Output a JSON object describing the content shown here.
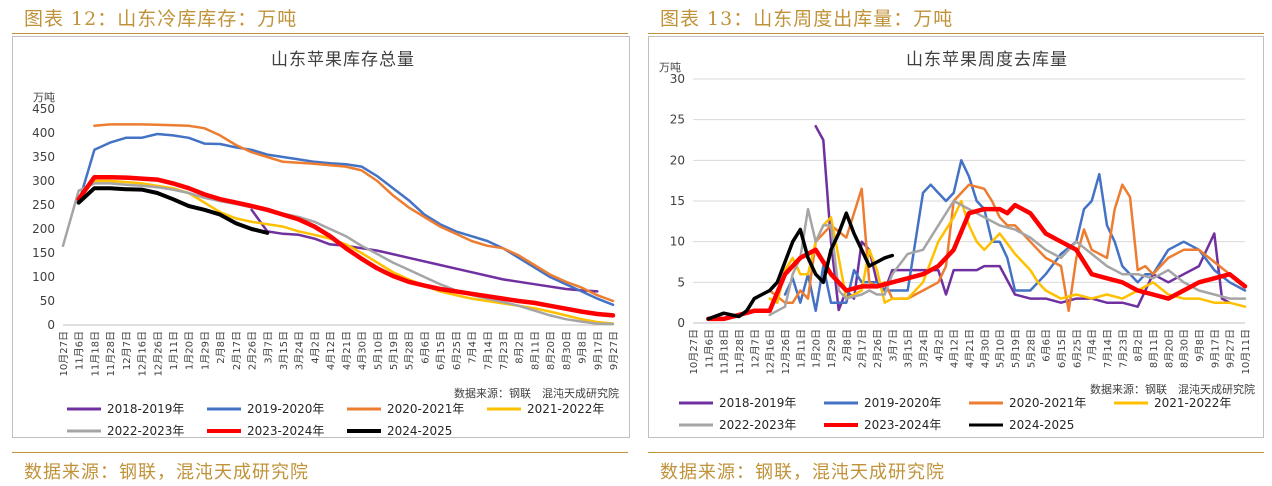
{
  "figures": [
    {
      "fig_title": "图表 12：山东冷库库存：万吨",
      "source_footer": "数据来源：钢联，混沌天成研究院"
    },
    {
      "fig_title": "图表 13：山东周度出库量：万吨",
      "source_footer": "数据来源：钢联，混沌天成研究院"
    }
  ],
  "chart_data": [
    {
      "type": "line",
      "title": "山东苹果库存总量",
      "unit": "万吨",
      "source_note": "数据来源：钢联　混沌天成研究院",
      "ylim": [
        0,
        450
      ],
      "yticks": [
        0,
        50,
        100,
        150,
        200,
        250,
        300,
        350,
        400,
        450
      ],
      "x_labels": [
        "10月27日",
        "11月6日",
        "11月18日",
        "11月28日",
        "12月7日",
        "12月16日",
        "12月26日",
        "1月11日",
        "1月20日",
        "1月29日",
        "2月8日",
        "2月17日",
        "2月26日",
        "3月7日",
        "3月15日",
        "3月24日",
        "4月2日",
        "4月12日",
        "4月21日",
        "4月30日",
        "5月10日",
        "5月19日",
        "5月28日",
        "6月6日",
        "6月15日",
        "6月25日",
        "7月4日",
        "7月14日",
        "7月23日",
        "8月2日",
        "8月11日",
        "8月20日",
        "8月30日",
        "9月8日",
        "9月17日",
        "9月27日"
      ],
      "grid": false,
      "legend_position": "bottom",
      "series": [
        {
          "name": "2018-2019年",
          "color": "#7030a0",
          "width": 2.5,
          "x": [
            12,
            13,
            14,
            15,
            16,
            17,
            18,
            20,
            22,
            24,
            26,
            28,
            30,
            32,
            33,
            34
          ],
          "y": [
            240,
            195,
            190,
            188,
            180,
            168,
            165,
            155,
            140,
            125,
            110,
            95,
            85,
            75,
            72,
            70
          ]
        },
        {
          "name": "2019-2020年",
          "color": "#4472c4",
          "width": 2.5,
          "x": [
            1,
            2,
            3,
            4,
            5,
            6,
            7,
            8,
            9,
            10,
            11,
            12,
            13,
            14,
            15,
            16,
            17,
            18,
            19,
            20,
            21,
            22,
            23,
            24,
            25,
            26,
            27,
            28,
            29,
            30,
            31,
            32,
            33,
            34,
            35
          ],
          "y": [
            255,
            365,
            380,
            390,
            390,
            398,
            395,
            390,
            378,
            377,
            370,
            365,
            355,
            350,
            345,
            340,
            337,
            335,
            330,
            310,
            285,
            260,
            230,
            210,
            195,
            185,
            175,
            160,
            140,
            120,
            100,
            85,
            70,
            55,
            42
          ]
        },
        {
          "name": "2020-2021年",
          "color": "#ed7d31",
          "width": 2.5,
          "x": [
            2,
            3,
            4,
            5,
            6,
            7,
            8,
            9,
            10,
            11,
            12,
            13,
            14,
            15,
            16,
            17,
            18,
            19,
            20,
            21,
            22,
            23,
            24,
            25,
            26,
            27,
            28,
            29,
            30,
            31,
            32,
            33,
            34,
            35
          ],
          "y": [
            415,
            418,
            418,
            418,
            417,
            416,
            415,
            410,
            395,
            375,
            360,
            350,
            340,
            338,
            336,
            333,
            330,
            322,
            300,
            270,
            245,
            225,
            205,
            190,
            175,
            165,
            160,
            145,
            125,
            105,
            90,
            78,
            62,
            50
          ]
        },
        {
          "name": "2021-2022年",
          "color": "#ffc000",
          "width": 2.5,
          "x": [
            2,
            3,
            4,
            5,
            6,
            7,
            8,
            9,
            10,
            11,
            12,
            13,
            14,
            15,
            16,
            17,
            18,
            19,
            20,
            21,
            22,
            23,
            24,
            25,
            26,
            27,
            28,
            29,
            30,
            31,
            32,
            33,
            34,
            35
          ],
          "y": [
            300,
            300,
            298,
            295,
            290,
            285,
            275,
            255,
            235,
            222,
            215,
            210,
            205,
            195,
            188,
            180,
            168,
            150,
            130,
            110,
            95,
            82,
            70,
            62,
            55,
            50,
            45,
            40,
            35,
            28,
            20,
            12,
            6,
            3
          ]
        },
        {
          "name": "2022-2023年",
          "color": "#a5a5a5",
          "width": 2.5,
          "x": [
            0,
            1,
            2,
            3,
            4,
            5,
            6,
            7,
            8,
            9,
            10,
            11,
            12,
            13,
            14,
            15,
            16,
            17,
            18,
            19,
            20,
            21,
            22,
            23,
            24,
            25,
            26,
            27,
            28,
            29,
            30,
            31,
            32,
            33,
            34,
            35
          ],
          "y": [
            165,
            280,
            295,
            295,
            292,
            290,
            287,
            282,
            275,
            265,
            258,
            252,
            245,
            238,
            232,
            225,
            215,
            200,
            185,
            165,
            148,
            130,
            115,
            100,
            85,
            72,
            62,
            55,
            48,
            40,
            30,
            20,
            12,
            7,
            3,
            2
          ]
        },
        {
          "name": "2023-2024年",
          "color": "#ff0000",
          "width": 4.5,
          "x": [
            1,
            2,
            3,
            4,
            5,
            6,
            7,
            8,
            9,
            10,
            11,
            12,
            13,
            14,
            15,
            16,
            17,
            18,
            19,
            20,
            21,
            22,
            23,
            24,
            25,
            26,
            27,
            28,
            29,
            30,
            31,
            32,
            33,
            34,
            35
          ],
          "y": [
            262,
            308,
            308,
            307,
            305,
            303,
            295,
            285,
            272,
            262,
            255,
            248,
            240,
            230,
            220,
            205,
            185,
            160,
            138,
            118,
            102,
            90,
            82,
            75,
            70,
            65,
            60,
            55,
            50,
            46,
            40,
            34,
            28,
            23,
            20
          ]
        },
        {
          "name": "2024-2025",
          "color": "#000000",
          "width": 4,
          "x": [
            1,
            2,
            3,
            4,
            5,
            6,
            7,
            8,
            9,
            10,
            11,
            12,
            13
          ],
          "y": [
            255,
            285,
            285,
            283,
            282,
            275,
            262,
            248,
            240,
            230,
            212,
            200,
            192
          ]
        }
      ]
    },
    {
      "type": "line",
      "title": "山东苹果周度去库量",
      "unit": "万吨",
      "source_note": "数据来源：钢联　混沌天成研究院",
      "ylim": [
        0,
        30
      ],
      "yticks": [
        0,
        5,
        10,
        15,
        20,
        25,
        30
      ],
      "x_labels": [
        "10月27日",
        "11月6日",
        "11月18日",
        "11月28日",
        "12月7日",
        "12月16日",
        "12月26日",
        "1月11日",
        "1月20日",
        "1月29日",
        "2月8日",
        "2月17日",
        "2月26日",
        "3月7日",
        "3月15日",
        "3月24日",
        "4月2日",
        "4月12日",
        "4月21日",
        "4月30日",
        "5月10日",
        "5月19日",
        "5月28日",
        "6月6日",
        "6月15日",
        "6月25日",
        "7月4日",
        "7月14日",
        "7月23日",
        "8月2日",
        "8月11日",
        "8月20日",
        "8月30日",
        "9月8日",
        "9月17日",
        "9月27日",
        "10月11日"
      ],
      "grid": true,
      "legend_position": "bottom",
      "series": [
        {
          "name": "2018-2019年",
          "color": "#7030a0",
          "width": 2.5,
          "x": [
            8,
            8.5,
            9,
            9.5,
            10,
            10.5,
            11,
            11.5,
            12,
            12.5,
            13,
            14,
            15,
            16,
            16.5,
            17,
            18,
            18.5,
            19,
            20,
            21,
            22,
            23,
            24,
            25,
            26,
            27,
            28,
            29,
            30,
            31,
            32,
            33,
            34,
            34.5,
            35
          ],
          "y": [
            24.2,
            22.5,
            10,
            1.6,
            4,
            3,
            10,
            9,
            5,
            4,
            6.5,
            6.5,
            6.5,
            6.5,
            3.5,
            6.5,
            6.5,
            6.5,
            7,
            7,
            3.5,
            3,
            3,
            2.5,
            3,
            3,
            2.5,
            2.5,
            2,
            6,
            5,
            6,
            7,
            11,
            3,
            2.5
          ]
        },
        {
          "name": "2019-2020年",
          "color": "#4472c4",
          "width": 2.5,
          "x": [
            6,
            6.5,
            7,
            7.5,
            8,
            8.5,
            9,
            10,
            10.5,
            11,
            12,
            12.5,
            13,
            13.5,
            14,
            15,
            15.5,
            16,
            16.5,
            17,
            17.5,
            18,
            18.5,
            19,
            19.5,
            20,
            20.5,
            21,
            22,
            23,
            24,
            25,
            25.5,
            26,
            26.5,
            27,
            27.5,
            28,
            28.5,
            29,
            29.5,
            30,
            31,
            32,
            33,
            34,
            35,
            36
          ],
          "y": [
            3.5,
            5.5,
            2.5,
            6,
            1.5,
            7,
            2.5,
            2.5,
            6.5,
            5,
            5,
            4,
            4,
            4,
            4,
            16,
            17,
            16,
            15,
            16,
            20,
            18,
            15,
            14,
            10,
            10,
            8,
            4,
            4,
            6,
            8.5,
            10,
            14,
            15,
            18.3,
            12,
            10,
            7,
            6,
            5,
            6,
            6,
            9,
            10,
            9,
            6.5,
            5,
            4
          ]
        },
        {
          "name": "2020-2021年",
          "color": "#ed7d31",
          "width": 2.5,
          "x": [
            5,
            6,
            6.5,
            7,
            7.5,
            8,
            9,
            10,
            11,
            11.5,
            12,
            12.5,
            13,
            14,
            15,
            16,
            16.5,
            17,
            17.5,
            18,
            19,
            19.5,
            20,
            20.5,
            21,
            22,
            23,
            24,
            24.5,
            25,
            25.5,
            26,
            27,
            27.5,
            28,
            28.5,
            29,
            29.5,
            30,
            31,
            32,
            33,
            34,
            35
          ],
          "y": [
            4,
            2.5,
            2.5,
            4,
            3,
            10,
            12,
            10.5,
            16.5,
            5,
            4.5,
            5,
            3,
            3,
            4,
            5,
            7,
            15,
            16,
            17,
            16.5,
            15,
            13,
            12,
            12,
            10,
            8,
            7,
            1.5,
            8,
            11.5,
            9,
            8,
            14,
            17,
            15.5,
            6.5,
            7,
            6,
            8,
            9,
            9,
            7.5,
            6
          ]
        },
        {
          "name": "2021-2022年",
          "color": "#ffc000",
          "width": 2.5,
          "x": [
            5,
            5.5,
            6,
            6.5,
            7,
            7.5,
            8,
            8.5,
            9,
            9.5,
            10,
            11,
            11.5,
            12,
            12.5,
            13,
            14,
            15,
            16,
            17,
            17.5,
            18,
            18.5,
            19,
            20,
            21,
            22,
            22.5,
            23,
            24,
            25,
            26,
            27,
            28,
            29,
            30,
            31,
            32,
            33,
            34,
            35,
            36
          ],
          "y": [
            3,
            2.5,
            6.5,
            8,
            6,
            6,
            10,
            12,
            13,
            8,
            3,
            4,
            9,
            6.5,
            2.5,
            3,
            3,
            5,
            10,
            13,
            15,
            12,
            10,
            9,
            11,
            8.5,
            6.5,
            5,
            4,
            3,
            3.5,
            3,
            3.5,
            3,
            4,
            5,
            3.5,
            3,
            3,
            2.5,
            2.5,
            2
          ]
        },
        {
          "name": "2022-2023年",
          "color": "#a5a5a5",
          "width": 2.5,
          "x": [
            5,
            5.5,
            6,
            6.5,
            7,
            7.5,
            8,
            8.5,
            9,
            9.5,
            10,
            11,
            11.5,
            12,
            12.5,
            13,
            14,
            15,
            16,
            17,
            18,
            19,
            20,
            21,
            22,
            23,
            24,
            25,
            26,
            27,
            28,
            29,
            30,
            31,
            32,
            33,
            34,
            35,
            36
          ],
          "y": [
            1,
            1.5,
            2,
            6,
            8,
            14,
            10,
            12,
            12,
            4,
            3,
            3.5,
            4,
            3.5,
            3.5,
            6,
            8.5,
            9,
            12,
            15,
            14,
            13,
            12,
            11.5,
            10.5,
            9,
            8,
            10,
            8.5,
            7,
            6,
            6,
            5.5,
            6.5,
            5,
            4,
            3.5,
            3,
            3
          ]
        },
        {
          "name": "2023-2024年",
          "color": "#ff0000",
          "width": 4.5,
          "x": [
            1,
            2,
            3,
            4,
            5,
            6,
            7,
            8,
            9,
            10,
            11,
            12,
            13,
            14,
            15,
            16,
            17,
            18,
            19,
            20,
            20.5,
            21,
            22,
            23,
            24,
            25,
            26,
            27,
            28,
            29,
            30,
            31,
            32,
            33,
            34,
            35,
            36
          ],
          "y": [
            0.5,
            0.5,
            1,
            1.5,
            1.5,
            6,
            8,
            9,
            6,
            4,
            4.5,
            4.5,
            5,
            5.5,
            6,
            7,
            9,
            13.5,
            14,
            14,
            13.5,
            14.5,
            13.5,
            11,
            10,
            9,
            6,
            5.5,
            5,
            4,
            3.5,
            3,
            4,
            5,
            5.5,
            6,
            4.5
          ]
        },
        {
          "name": "2024-2025",
          "color": "#000000",
          "width": 3.5,
          "x": [
            1,
            2,
            3,
            3.5,
            4,
            4.5,
            5,
            5.5,
            6,
            6.5,
            7,
            7.5,
            8,
            8.5,
            9,
            9.5,
            10,
            10.5,
            11,
            11.5,
            12,
            12.5,
            13
          ],
          "y": [
            0.5,
            1.2,
            0.8,
            1.5,
            3,
            3.5,
            4,
            5,
            7.5,
            10,
            11.5,
            8,
            6,
            5,
            9,
            11,
            13.5,
            11,
            9,
            7,
            7.5,
            8,
            8.3
          ]
        }
      ]
    }
  ]
}
